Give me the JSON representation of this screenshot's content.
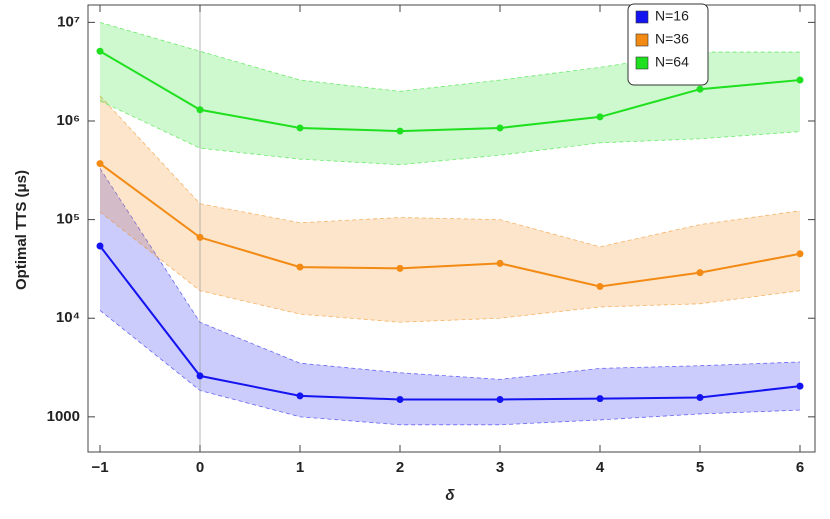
{
  "chart_data": {
    "type": "line_band",
    "x_label": "δ",
    "y_label": "Optimal TTS (μs)",
    "x": [
      -1,
      0,
      1,
      2,
      3,
      4,
      5,
      6
    ],
    "xlim": [
      -1.12,
      6.15
    ],
    "xticks": [
      {
        "value": -1,
        "label": "−1"
      },
      0,
      1,
      2,
      3,
      4,
      5,
      6
    ],
    "ylim": [
      440,
      15000000
    ],
    "log_y": true,
    "yticks": [
      1000,
      {
        "value": 10000,
        "label": "10⁴"
      },
      {
        "value": 100000,
        "label": "10⁵"
      },
      {
        "value": 1000000,
        "label": "10⁶"
      },
      {
        "value": 10000000,
        "label": "10⁷"
      }
    ],
    "zero_line": true,
    "legend": "top-right",
    "series": [
      {
        "name": "N=16",
        "color": "#1414f0",
        "values": [
          54000,
          2600,
          1630,
          1500,
          1500,
          1530,
          1570,
          2050
        ],
        "upper": [
          330000,
          9100,
          3500,
          2800,
          2400,
          3100,
          3300,
          3600
        ],
        "lower": [
          12000,
          1850,
          1000,
          830,
          830,
          930,
          1070,
          1170
        ]
      },
      {
        "name": "N=36",
        "color": "#f28a14",
        "values": [
          370000,
          66000,
          33000,
          32000,
          36000,
          21000,
          29000,
          45000
        ],
        "upper": [
          1800000,
          145000,
          93000,
          105000,
          100000,
          53000,
          89000,
          123000
        ],
        "lower": [
          120000,
          19000,
          11000,
          9100,
          10000,
          13000,
          14000,
          19000
        ]
      },
      {
        "name": "N=64",
        "color": "#1ee01e",
        "values": [
          5100000,
          1300000,
          850000,
          790000,
          850000,
          1100000,
          2100000,
          2600000
        ],
        "upper": [
          10000000,
          5100000,
          2600000,
          2000000,
          2600000,
          3500000,
          5000000,
          5000000
        ],
        "lower": [
          1600000,
          530000,
          410000,
          360000,
          450000,
          600000,
          660000,
          780000
        ]
      }
    ]
  }
}
